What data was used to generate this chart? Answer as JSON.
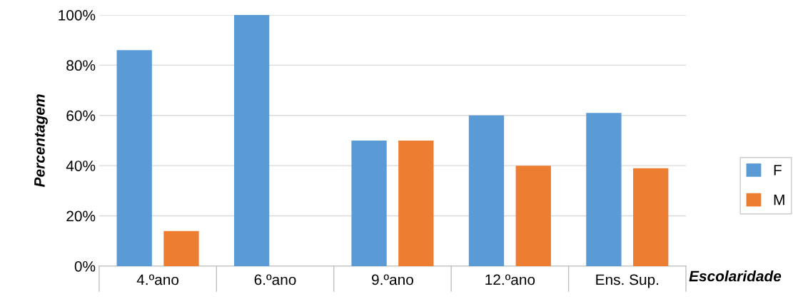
{
  "chart_data": {
    "type": "bar",
    "xlabel": "Escolaridade",
    "ylabel": "Percentagem",
    "categories": [
      "4.ºano",
      "6.ºano",
      "9.ºano",
      "12.ºano",
      "Ens. Sup."
    ],
    "series": [
      {
        "name": "F",
        "color": "#5b9bd5",
        "values": [
          86,
          100,
          50,
          60,
          61
        ]
      },
      {
        "name": "M",
        "color": "#ed7d31",
        "values": [
          14,
          0,
          50,
          40,
          39
        ]
      }
    ],
    "ylim": [
      0,
      100
    ],
    "yticks": [
      {
        "value": 0,
        "label": "0%"
      },
      {
        "value": 20,
        "label": "20%"
      },
      {
        "value": 40,
        "label": "40%"
      },
      {
        "value": 60,
        "label": "60%"
      },
      {
        "value": 80,
        "label": "80%"
      },
      {
        "value": 100,
        "label": "100%"
      }
    ],
    "grid": "y",
    "legend": "right"
  }
}
